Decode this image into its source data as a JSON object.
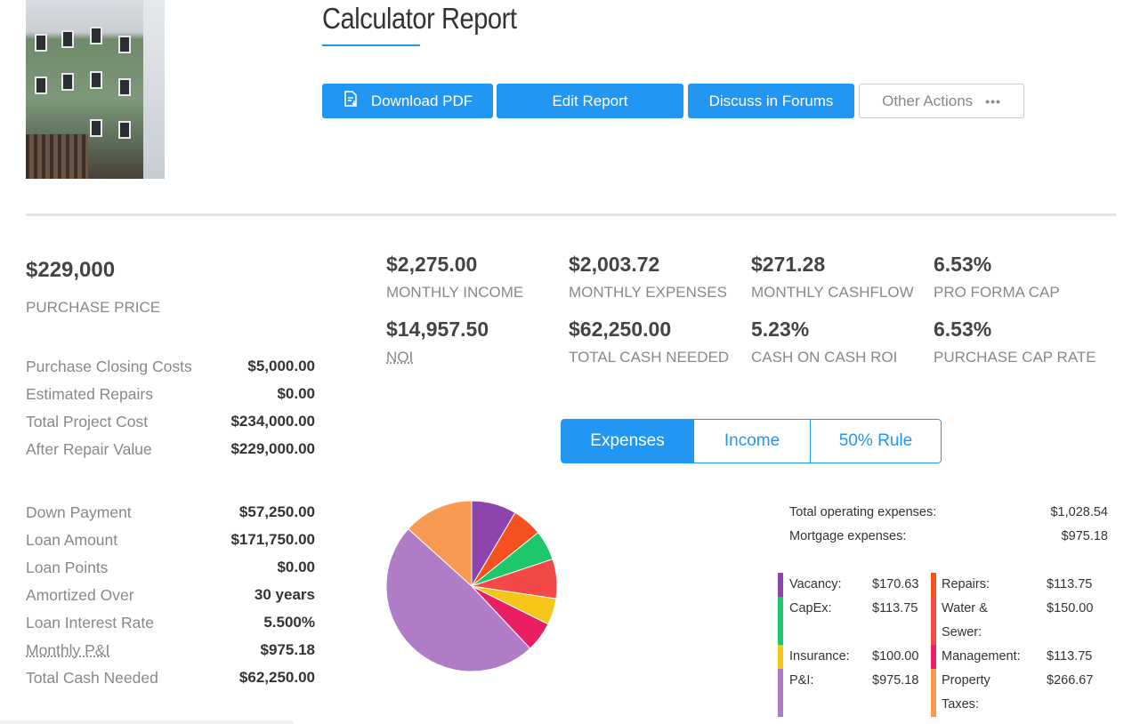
{
  "header": {
    "title": "Calculator Report",
    "buttons": {
      "download": "Download PDF",
      "edit": "Edit Report",
      "discuss": "Discuss in Forums",
      "other": "Other Actions",
      "other_dots": "•••"
    }
  },
  "purchase": {
    "price": "$229,000",
    "price_label": "PURCHASE PRICE",
    "details": [
      {
        "label": "Purchase Closing Costs",
        "value": "$5,000.00"
      },
      {
        "label": "Estimated Repairs",
        "value": "$0.00"
      },
      {
        "label": "Total Project Cost",
        "value": "$234,000.00"
      },
      {
        "label": "After Repair Value",
        "value": "$229,000.00"
      }
    ],
    "loan": [
      {
        "label": "Down Payment",
        "value": "$57,250.00"
      },
      {
        "label": "Loan Amount",
        "value": "$171,750.00"
      },
      {
        "label": "Loan Points",
        "value": "$0.00"
      },
      {
        "label": "Amortized Over",
        "value": "30 years"
      },
      {
        "label": "Loan Interest Rate",
        "value": "5.500%"
      },
      {
        "label": "Monthly P&I",
        "value": "$975.18"
      },
      {
        "label": "Total Cash Needed",
        "value": "$62,250.00"
      }
    ]
  },
  "metrics": [
    {
      "value": "$2,275.00",
      "label": "MONTHLY INCOME"
    },
    {
      "value": "$2,003.72",
      "label": "MONTHLY EXPENSES"
    },
    {
      "value": "$271.28",
      "label": "MONTHLY CASHFLOW"
    },
    {
      "value": "6.53%",
      "label": "PRO FORMA CAP"
    },
    {
      "value": "$14,957.50",
      "label": "NOI"
    },
    {
      "value": "$62,250.00",
      "label": "TOTAL CASH NEEDED"
    },
    {
      "value": "5.23%",
      "label": "CASH ON CASH ROI"
    },
    {
      "value": "6.53%",
      "label": "PURCHASE CAP RATE"
    }
  ],
  "tabs": [
    {
      "label": "Expenses",
      "active": true
    },
    {
      "label": "Income",
      "active": false
    },
    {
      "label": "50% Rule",
      "active": false
    }
  ],
  "summary": [
    {
      "label": "Total operating expenses:",
      "value": "$1,028.54"
    },
    {
      "label": "Mortgage expenses:",
      "value": "$975.18"
    }
  ],
  "legend": {
    "vacancy": {
      "label": "Vacancy:",
      "value": "$170.63",
      "color": "#8e44ad"
    },
    "repairs": {
      "label": "Repairs:",
      "value": "$113.75",
      "color": "#f4511e"
    },
    "capex": {
      "label": "CapEx:",
      "value": "$113.75",
      "color": "#1ec86a"
    },
    "water_1": {
      "label": "Water &",
      "value": "$150.00",
      "color": "#f44848"
    },
    "water_2": {
      "label": "Sewer:"
    },
    "insurance": {
      "label": "Insurance:",
      "value": "$100.00",
      "color": "#f5c518"
    },
    "management": {
      "label": "Management:",
      "value": "$113.75",
      "color": "#e91e63"
    },
    "pi": {
      "label": "P&I:",
      "value": "$975.18",
      "color": "#b07cc6"
    },
    "property_1": {
      "label": "Property",
      "value": "$266.67",
      "color": "#f99a52"
    },
    "property_2": {
      "label": "Taxes:"
    }
  },
  "chart_data": {
    "type": "pie",
    "slices": [
      {
        "name": "Vacancy",
        "value": 170.63,
        "color": "#8e44ad"
      },
      {
        "name": "Repairs",
        "value": 113.75,
        "color": "#f4511e"
      },
      {
        "name": "CapEx",
        "value": 113.75,
        "color": "#1ec86a"
      },
      {
        "name": "Water & Sewer",
        "value": 150.0,
        "color": "#f44848"
      },
      {
        "name": "Insurance",
        "value": 100.0,
        "color": "#f5c518"
      },
      {
        "name": "Management",
        "value": 113.75,
        "color": "#e91e63"
      },
      {
        "name": "P&I",
        "value": 975.18,
        "color": "#b07cc6"
      },
      {
        "name": "Property Taxes",
        "value": 266.67,
        "color": "#f99a52"
      }
    ]
  }
}
